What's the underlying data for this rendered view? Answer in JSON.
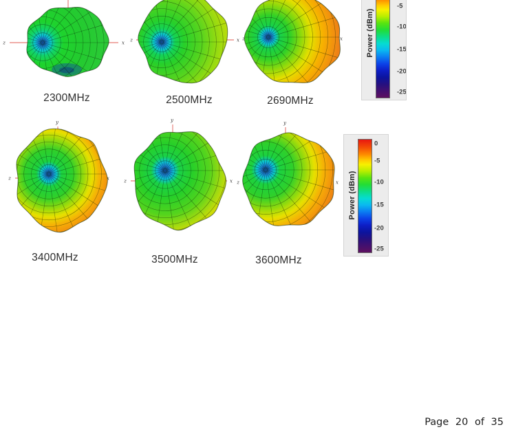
{
  "footer": {
    "text": "Page 20 of 35"
  },
  "figures": [
    {
      "label": "2300MHz",
      "axis_left": "z",
      "axis_right": "x",
      "axis_top": ""
    },
    {
      "label": "2500MHz",
      "axis_left": "z",
      "axis_right": "x",
      "axis_top": ""
    },
    {
      "label": "2690MHz",
      "axis_left": "z",
      "axis_right": "x",
      "axis_top": ""
    },
    {
      "label": "3400MHz",
      "axis_left": "z",
      "axis_right": "x",
      "axis_top": "y"
    },
    {
      "label": "3500MHz",
      "axis_left": "z",
      "axis_right": "x",
      "axis_top": "y"
    },
    {
      "label": "3600MHz",
      "axis_left": "z",
      "axis_right": "x",
      "axis_top": "y"
    }
  ],
  "colorbar_cropped": {
    "label": "Power (dBm)",
    "ticks": [
      "-5",
      "-10",
      "-15",
      "-20",
      "-25"
    ]
  },
  "colorbar_full": {
    "label": "Power (dBm)",
    "ticks": [
      "0",
      "-5",
      "-10",
      "-15",
      "-20",
      "-25"
    ]
  },
  "colors": {
    "axis_line": "#e05a52",
    "scale_top": "#e81710",
    "scale_mid_yellow": "#f8f000",
    "scale_mid_green": "#22dd36",
    "scale_mid_blue": "#0c42e8",
    "scale_bottom": "#5d1060",
    "panel_background": "#ececec"
  }
}
